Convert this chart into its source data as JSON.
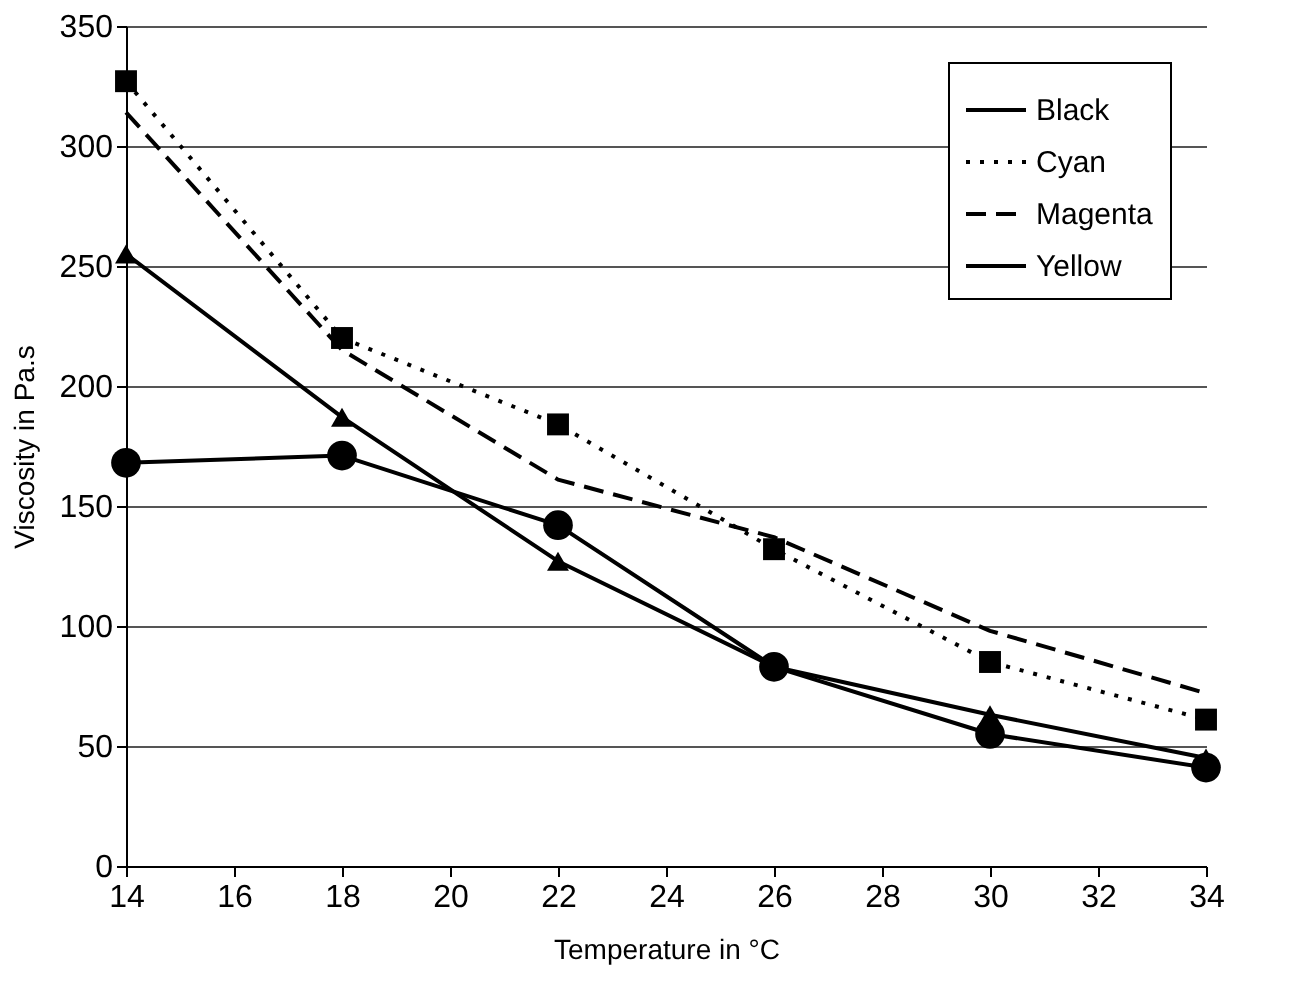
{
  "chart_data": {
    "type": "line",
    "xlabel": "Temperature in °C",
    "ylabel": "Viscosity in Pa.s",
    "x": [
      14,
      18,
      22,
      26,
      30,
      34
    ],
    "series": [
      {
        "name": "Black",
        "color": "#000000",
        "marker": "triangle",
        "line_style": "solid",
        "values": [
          255,
          187,
          127,
          83,
          63,
          45
        ]
      },
      {
        "name": "Cyan",
        "color": "#000000",
        "marker": "square",
        "line_style": "dotted",
        "values": [
          327,
          220,
          184,
          132,
          85,
          61
        ]
      },
      {
        "name": "Magenta",
        "color": "#000000",
        "marker": "none",
        "line_style": "dashed",
        "values": [
          314,
          215,
          161,
          137,
          98,
          72
        ]
      },
      {
        "name": "Yellow",
        "color": "#000000",
        "marker": "circle",
        "line_style": "solid",
        "values": [
          168,
          171,
          142,
          83,
          55,
          41
        ]
      }
    ],
    "xlim": [
      14,
      34
    ],
    "xticks": [
      14,
      16,
      18,
      20,
      22,
      24,
      26,
      28,
      30,
      32,
      34
    ],
    "ylim": [
      0,
      350
    ],
    "yticks": [
      0,
      50,
      100,
      150,
      200,
      250,
      300,
      350
    ],
    "grid": "y",
    "legend": "top right"
  }
}
